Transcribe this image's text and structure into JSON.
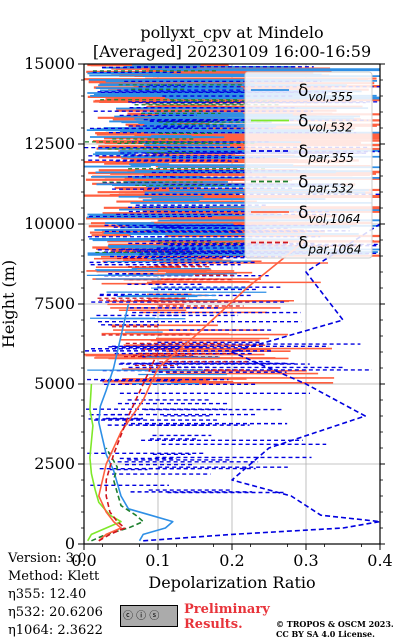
{
  "title_line1": "pollyxt_cpv at Mindelo",
  "title_line2": "[Averaged] 20230109 16:00-16:59",
  "info": {
    "version": "Version: 3.0",
    "method": "Method: Klett",
    "eta355": "η355:  12.40",
    "eta532": "η532: 20.6206",
    "eta1064": "η1064: 2.3622"
  },
  "preliminary_line1": "Preliminary",
  "preliminary_line2": "Results.",
  "copyright_line1": "© TROPOS & OSCM 2023.",
  "copyright_line2": "CC BY SA 4.0 License.",
  "cc_badge": "cc-by-sa-icon",
  "colors": {
    "vol355": "#2e8fe6",
    "vol532": "#7ee82a",
    "par355": "#0000e0",
    "par532": "#1d7f2e",
    "vol1064": "#ff6040",
    "par1064": "#d0141e",
    "prelim": "#e8333a"
  },
  "chart_data": {
    "type": "line",
    "title": "pollyxt_cpv at Mindelo [Averaged] 20230109 16:00-16:59",
    "xlabel": "Depolarization Ratio",
    "ylabel": "Height (m)",
    "xlim": [
      0.0,
      0.4
    ],
    "ylim": [
      0,
      15000
    ],
    "xticks": [
      "0.0",
      "0.1",
      "0.2",
      "0.3",
      "0.4"
    ],
    "yticks": [
      "0",
      "2500",
      "5000",
      "7500",
      "10000",
      "12500",
      "15000"
    ],
    "grid": true,
    "legend_position": "top-right",
    "series": [
      {
        "name": "δvol,355",
        "style": "solid",
        "color": "#2e8fe6",
        "x": [
          0.075,
          0.08,
          0.11,
          0.12,
          0.09,
          0.06,
          0.05,
          0.045,
          0.04,
          0.03,
          0.025,
          0.02,
          0.022,
          0.03,
          0.04,
          0.05,
          0.06
        ],
        "y": [
          100,
          300,
          500,
          700,
          900,
          1100,
          1500,
          1900,
          2300,
          2800,
          3300,
          3800,
          4300,
          4800,
          5500,
          6500,
          7500
        ]
      },
      {
        "name": "δvol,532",
        "style": "solid",
        "color": "#7ee82a",
        "x": [
          0.005,
          0.01,
          0.03,
          0.05,
          0.035,
          0.02,
          0.015,
          0.01,
          0.008,
          0.01,
          0.012,
          0.008,
          0.01
        ],
        "y": [
          100,
          300,
          500,
          700,
          900,
          1300,
          1700,
          2200,
          2700,
          3200,
          3700,
          4200,
          5000
        ]
      },
      {
        "name": "δpar,355",
        "style": "dashed",
        "color": "#0000e0",
        "x": [
          0.08,
          0.2,
          0.35,
          0.4,
          0.32,
          0.28,
          0.2,
          0.25,
          0.38,
          0.3,
          0.2,
          0.35,
          0.3,
          0.4
        ],
        "y": [
          100,
          300,
          500,
          700,
          900,
          1500,
          2000,
          3000,
          4000,
          5000,
          6000,
          7000,
          8500,
          10000
        ]
      },
      {
        "name": "δpar,532",
        "style": "dashed",
        "color": "#1d7f2e",
        "x": [
          0.01,
          0.03,
          0.06,
          0.08,
          0.07,
          0.05,
          0.045,
          0.04,
          0.045,
          0.03
        ],
        "y": [
          100,
          300,
          500,
          700,
          900,
          1200,
          1600,
          2000,
          2400,
          3000
        ]
      },
      {
        "name": "δvol,1064",
        "style": "solid",
        "color": "#ff6040",
        "x": [
          0.02,
          0.03,
          0.05,
          0.04,
          0.03,
          0.02,
          0.025,
          0.03,
          0.05,
          0.08,
          0.1,
          0.15,
          0.22,
          0.3
        ],
        "y": [
          100,
          300,
          500,
          700,
          1000,
          1500,
          2000,
          2500,
          3500,
          4500,
          5500,
          6500,
          8000,
          9500
        ]
      },
      {
        "name": "δpar,1064",
        "style": "dashed",
        "color": "#d0141e",
        "x": [
          0.02,
          0.035,
          0.055,
          0.045,
          0.035,
          0.03,
          0.03,
          0.04,
          0.06,
          0.1
        ],
        "y": [
          100,
          300,
          500,
          700,
          1000,
          1500,
          2000,
          2800,
          4000,
          6000
        ]
      }
    ]
  }
}
